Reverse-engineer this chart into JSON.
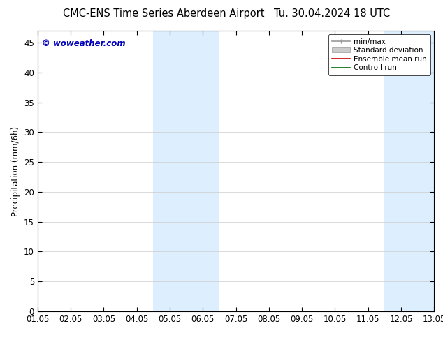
{
  "title_left": "CMC-ENS Time Series Aberdeen Airport",
  "title_right": "Tu. 30.04.2024 18 UTC",
  "ylabel": "Precipitation (mm/6h)",
  "watermark": "© woweather.com",
  "watermark_color": "#0000bb",
  "ylim": [
    0,
    47
  ],
  "yticks": [
    0,
    5,
    10,
    15,
    20,
    25,
    30,
    35,
    40,
    45
  ],
  "xtick_labels": [
    "01.05",
    "02.05",
    "03.05",
    "04.05",
    "05.05",
    "06.05",
    "07.05",
    "08.05",
    "09.05",
    "10.05",
    "11.05",
    "12.05",
    "13.05"
  ],
  "background_color": "#ffffff",
  "plot_bg_color": "#ffffff",
  "shaded_regions": [
    {
      "xstart": 4,
      "xend": 6
    },
    {
      "xstart": 11,
      "xend": 13
    }
  ],
  "shaded_color": "#ddeeff",
  "grid_color": "#cccccc",
  "tick_color": "#000000",
  "font_size": 8.5,
  "title_font_size": 10.5,
  "legend_font_size": 7.5
}
